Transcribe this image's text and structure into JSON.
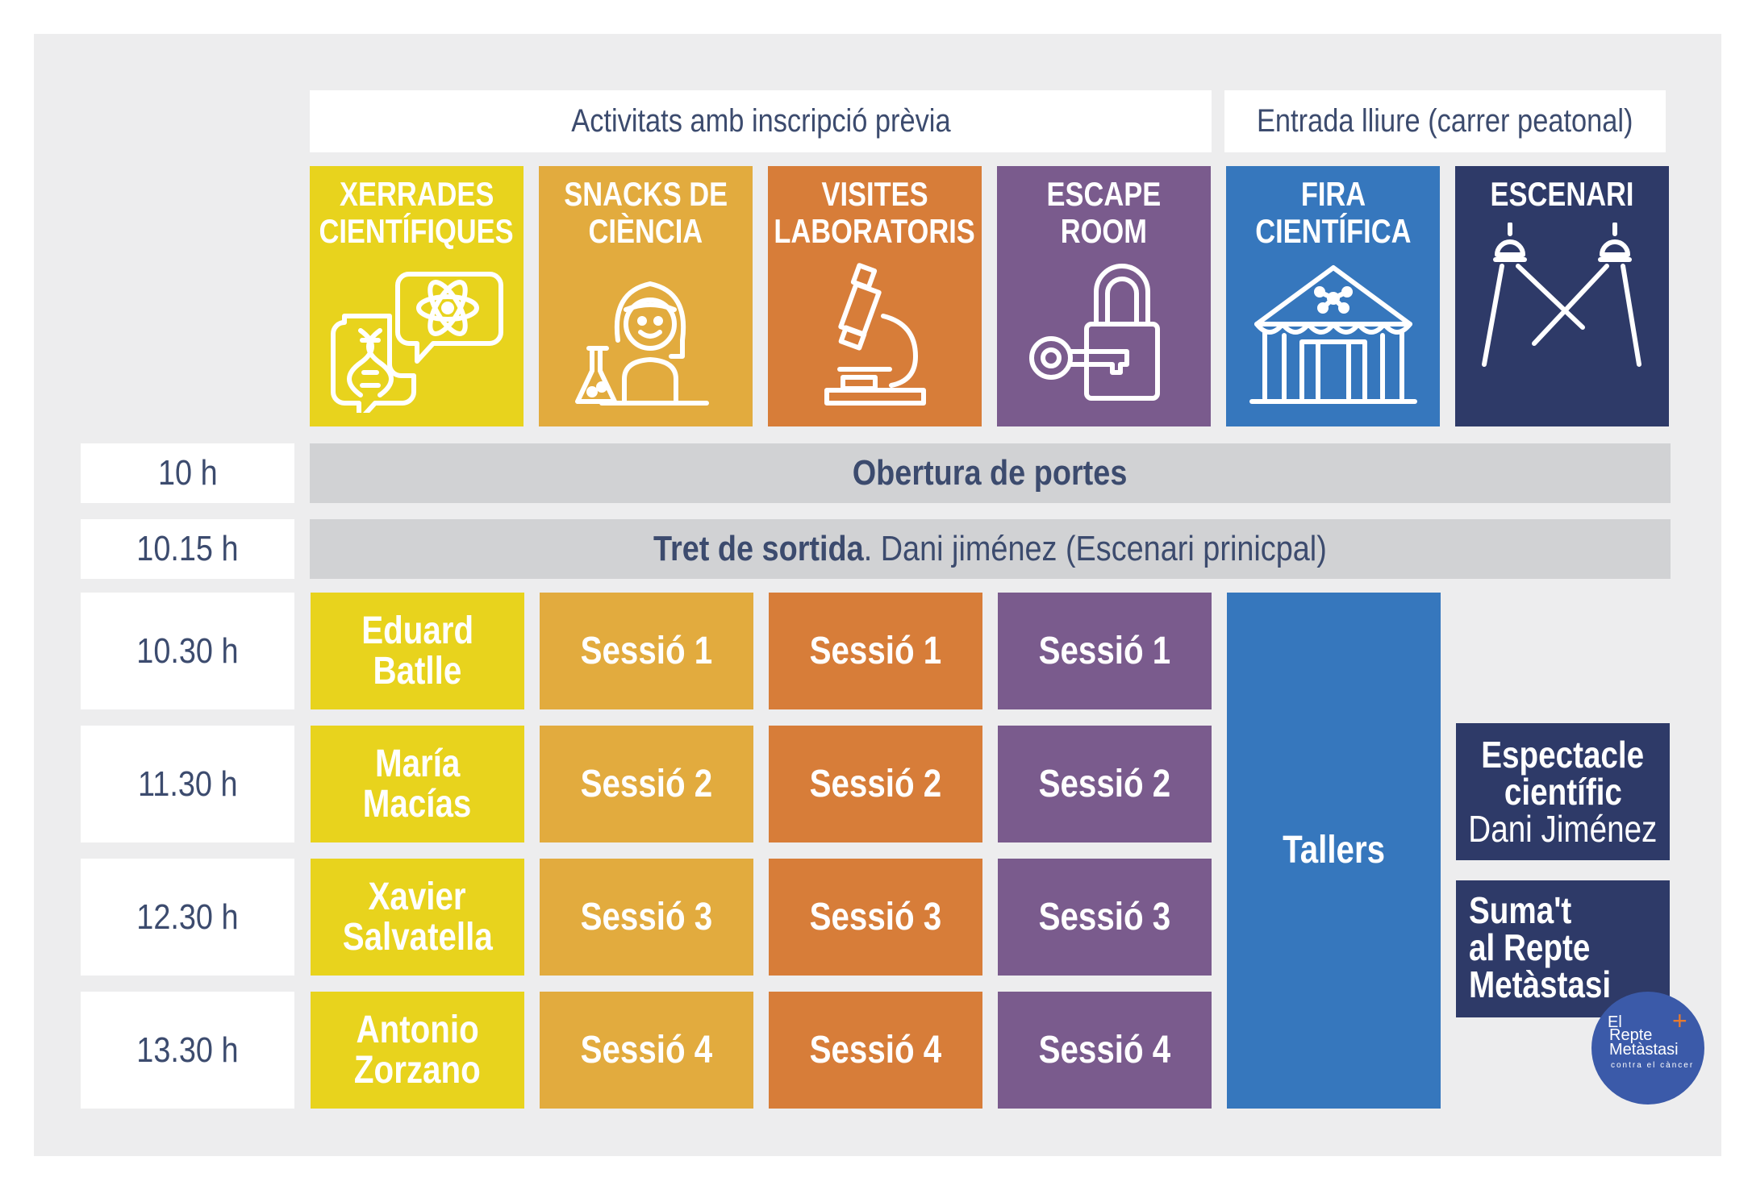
{
  "groups": {
    "inscripcio": "Activitats amb inscripció prèvia",
    "lliure": "Entrada lliure (carrer peatonal)"
  },
  "columns": [
    {
      "line1": "XERRADES",
      "line2": "CIENTÍFIQUES",
      "icon": "speech-bubbles-dna-atom-icon",
      "color": "#e8d31d"
    },
    {
      "line1": "SNACKS DE",
      "line2": "CIÈNCIA",
      "icon": "scientist-woman-flask-icon",
      "color": "#e2ab3e"
    },
    {
      "line1": "VISITES",
      "line2": "LABORATORIS",
      "icon": "microscope-icon",
      "color": "#d77d39"
    },
    {
      "line1": "ESCAPE",
      "line2": "ROOM",
      "icon": "padlock-key-icon",
      "color": "#7a5b8d"
    },
    {
      "line1": "FIRA",
      "line2": "CIENTÍFICA",
      "icon": "fair-tent-icon",
      "color": "#3677bd"
    },
    {
      "line1": "ESCENARI",
      "line2": "",
      "icon": "stage-spotlights-icon",
      "color": "#2e3a68"
    }
  ],
  "times": [
    "10 h",
    "10.15 h",
    "10.30 h",
    "11.30 h",
    "12.30 h",
    "13.30 h"
  ],
  "bands": {
    "obertura": "Obertura de portes",
    "tret_bold": "Tret de sortida",
    "tret_rest": ". Dani jiménez (Escenari prinicpal)"
  },
  "speakers": [
    [
      "Eduard",
      "Batlle"
    ],
    [
      "María",
      "Macías"
    ],
    [
      "Xavier",
      "Salvatella"
    ],
    [
      "Antonio",
      "Zorzano"
    ]
  ],
  "sessions": [
    "Sessió 1",
    "Sessió 2",
    "Sessió 3",
    "Sessió 4"
  ],
  "tallers": "Tallers",
  "escenari_events": {
    "espectacle": [
      "Espectacle",
      "científic",
      "Dani Jiménez"
    ],
    "suma": [
      "Suma't",
      "al Repte",
      "Metàstasi"
    ]
  },
  "logo": {
    "line1": "El",
    "line2": "Repte",
    "line3": "Metàstasi",
    "line4": "contra el càncer",
    "plus": "+"
  }
}
